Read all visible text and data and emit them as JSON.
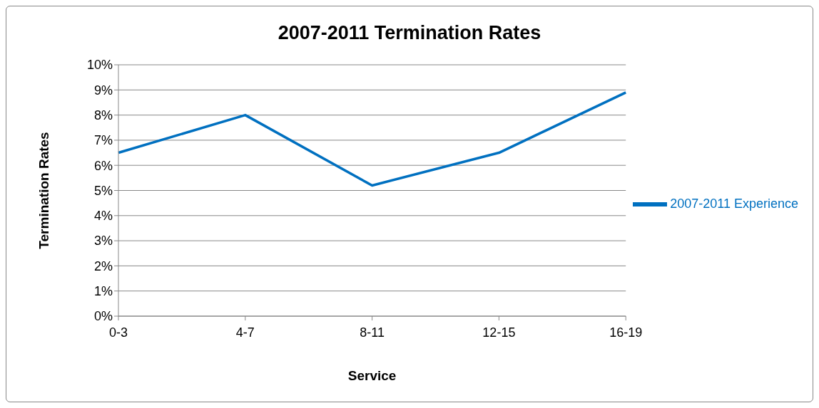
{
  "chart_data": {
    "type": "line",
    "title": "2007-2011 Termination Rates",
    "xlabel": "Service",
    "ylabel": "Termination Rates",
    "categories": [
      "0-3",
      "4-7",
      "8-11",
      "12-15",
      "16-19"
    ],
    "series": [
      {
        "name": "2007-2011 Experience",
        "color": "#0070c0",
        "values": [
          6.5,
          8.0,
          5.2,
          6.5,
          8.9
        ]
      }
    ],
    "ylim": [
      0,
      10
    ],
    "yticks": [
      {
        "value": 0,
        "label": "0%"
      },
      {
        "value": 1,
        "label": "1%"
      },
      {
        "value": 2,
        "label": "2%"
      },
      {
        "value": 3,
        "label": "3%"
      },
      {
        "value": 4,
        "label": "4%"
      },
      {
        "value": 5,
        "label": "5%"
      },
      {
        "value": 6,
        "label": "6%"
      },
      {
        "value": 7,
        "label": "7%"
      },
      {
        "value": 8,
        "label": "8%"
      },
      {
        "value": 9,
        "label": "9%"
      },
      {
        "value": 10,
        "label": "10%"
      }
    ],
    "grid": "y",
    "legend": "right"
  }
}
